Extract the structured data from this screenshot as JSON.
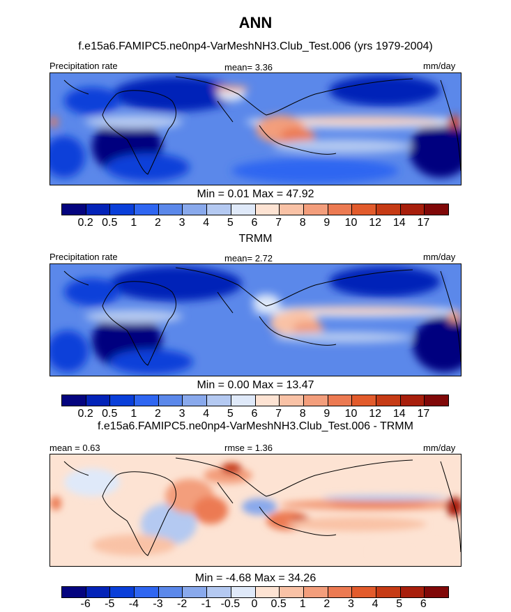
{
  "figure_title": "ANN",
  "panels": [
    {
      "title": "f.e15a6.FAMIPC5.ne0np4-VarMeshNH3.Club_Test.006 (yrs 1979-2004)",
      "left_label": "Precipitation rate",
      "center_label": "mean=   3.36",
      "right_label": "mm/day",
      "minmax": "Min =   0.01 Max =  47.92",
      "kind": "absolute"
    },
    {
      "title": "TRMM",
      "left_label": "Precipitation rate",
      "center_label": "mean=   2.72",
      "right_label": "mm/day",
      "minmax": "Min =   0.00 Max =  13.47",
      "kind": "absolute"
    },
    {
      "title": "f.e15a6.FAMIPC5.ne0np4-VarMeshNH3.Club_Test.006 - TRMM",
      "left_label": "mean =   0.63",
      "center_label": "rmse =   1.36",
      "right_label": "mm/day",
      "minmax": "Min =  -4.68 Max =  34.26",
      "kind": "difference"
    }
  ],
  "colorbars": {
    "absolute_colors": [
      "#04047f",
      "#0323b8",
      "#0a3fd9",
      "#2f66f1",
      "#5b88ea",
      "#89a9ec",
      "#b4c9f1",
      "#dfe9f9",
      "#fde3d3",
      "#f9c2a6",
      "#f39e7c",
      "#ec7a52",
      "#e25b2c",
      "#c63b15",
      "#a81f0c",
      "#800808"
    ],
    "absolute_ticks": [
      "0.2",
      "0.5",
      "1",
      "2",
      "3",
      "4",
      "5",
      "6",
      "7",
      "8",
      "9",
      "10",
      "12",
      "14",
      "17"
    ],
    "difference_colors": [
      "#04047f",
      "#0323b8",
      "#0a3fd9",
      "#2f66f1",
      "#5b88ea",
      "#89a9ec",
      "#b4c9f1",
      "#dfe9f9",
      "#fde3d3",
      "#f9c2a6",
      "#f39e7c",
      "#ec7a52",
      "#e25b2c",
      "#c63b15",
      "#a81f0c",
      "#800808"
    ],
    "difference_ticks": [
      "-6",
      "-5",
      "-4",
      "-3",
      "-2",
      "-1",
      "-0.5",
      "0",
      "0.5",
      "1",
      "2",
      "3",
      "4",
      "5",
      "6"
    ]
  }
}
